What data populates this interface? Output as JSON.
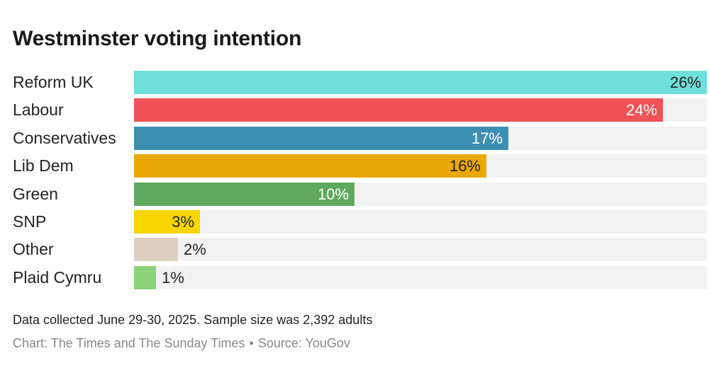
{
  "title": "Westminster voting intention",
  "chart_data": {
    "type": "bar",
    "orientation": "horizontal",
    "title": "Westminster voting intention",
    "categories": [
      "Reform UK",
      "Labour",
      "Conservatives",
      "Lib Dem",
      "Green",
      "SNP",
      "Other",
      "Plaid Cymru"
    ],
    "values": [
      26,
      24,
      17,
      16,
      10,
      3,
      2,
      1
    ],
    "value_labels": [
      "26%",
      "24%",
      "17%",
      "16%",
      "10%",
      "3%",
      "2%",
      "1%"
    ],
    "colors": [
      "#6fe0d9",
      "#ef5257",
      "#3d8fb1",
      "#eaa804",
      "#5fa95f",
      "#f7d500",
      "#ddd0c1",
      "#8dd37a"
    ],
    "label_colors": [
      "#222222",
      "#ffffff",
      "#ffffff",
      "#222222",
      "#ffffff",
      "#222222",
      "#222222",
      "#222222"
    ],
    "xlim": [
      0,
      26
    ],
    "unit": "%"
  },
  "footnote": "Data collected June 29-30, 2025. Sample size was 2,392 adults",
  "credit": {
    "chart": "Chart: The Times and The Sunday Times",
    "separator": "•",
    "source": "Source: YouGov"
  }
}
